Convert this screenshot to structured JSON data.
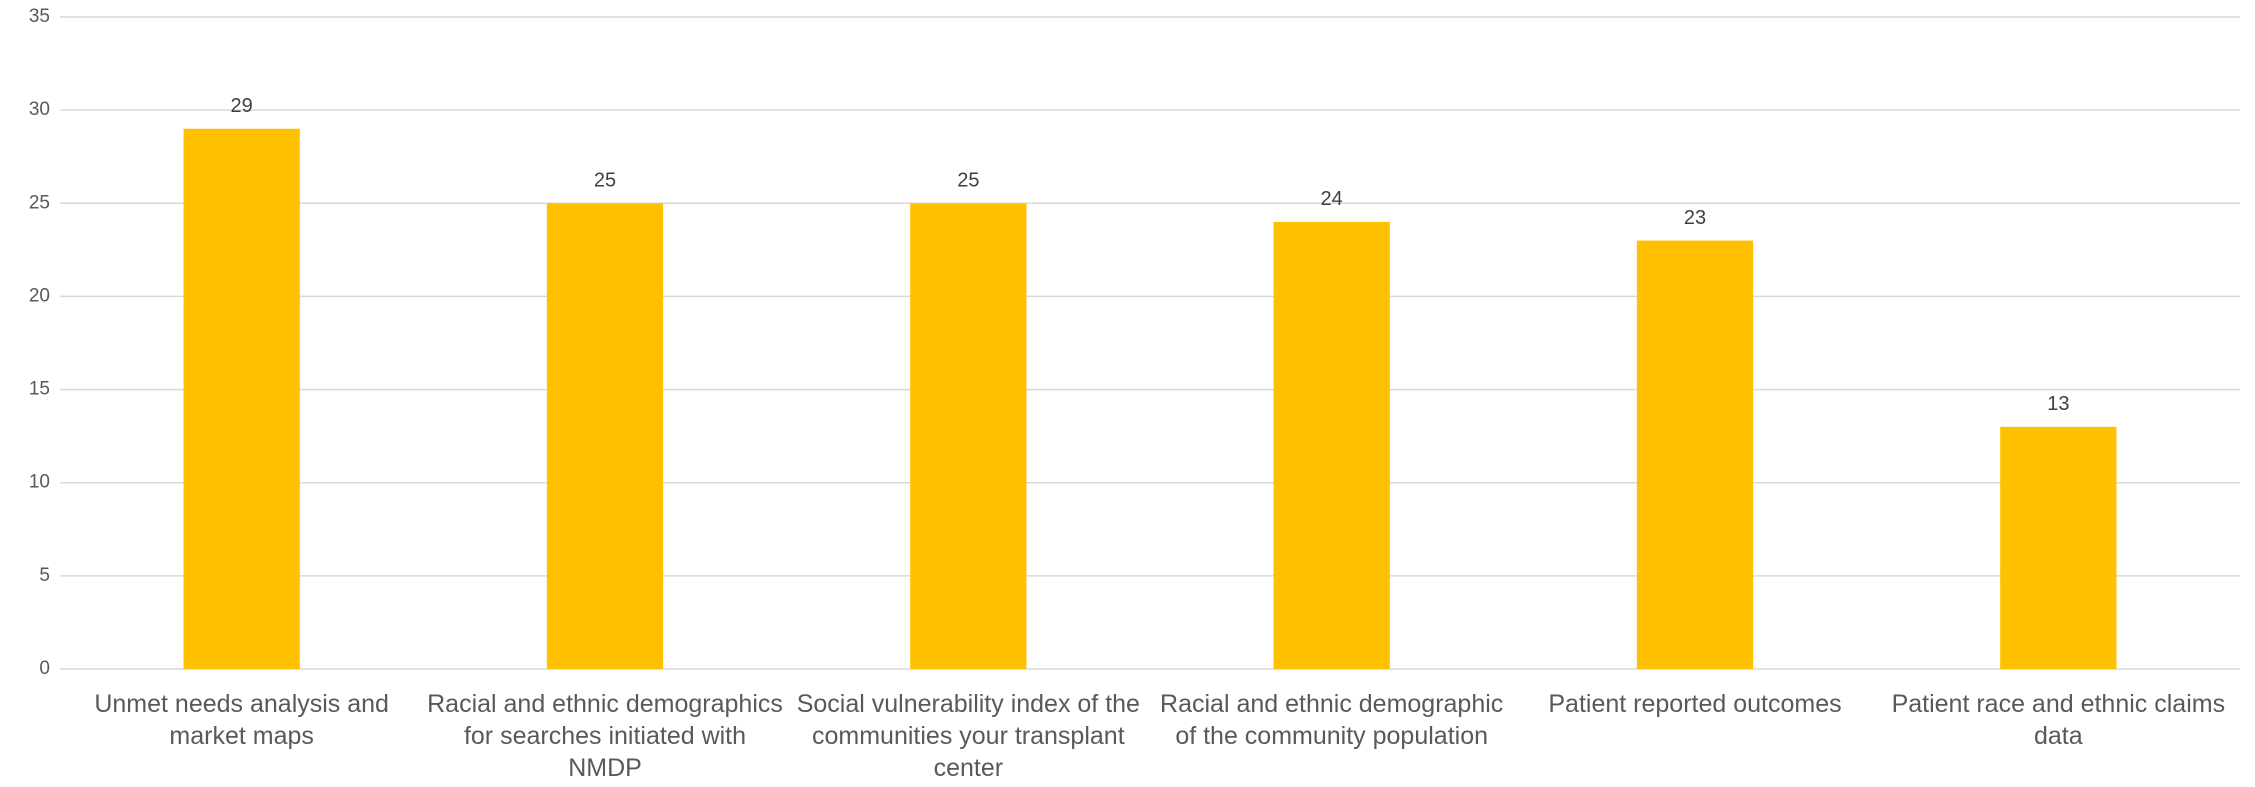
{
  "chart_data": {
    "type": "bar",
    "categories": [
      "Unmet needs analysis and market maps",
      "Racial and ethnic demographics for searches initiated with NMDP",
      "Social vulnerability index of the communities your transplant center",
      "Racial and ethnic demographic of the community population",
      "Patient reported outcomes",
      "Patient race and ethnic claims data"
    ],
    "values": [
      29,
      25,
      25,
      24,
      23,
      13
    ],
    "color": "#ffc000",
    "ylim": [
      0,
      35
    ],
    "yticks": [
      0,
      5,
      10,
      15,
      20,
      25,
      30,
      35
    ],
    "grid": true
  }
}
